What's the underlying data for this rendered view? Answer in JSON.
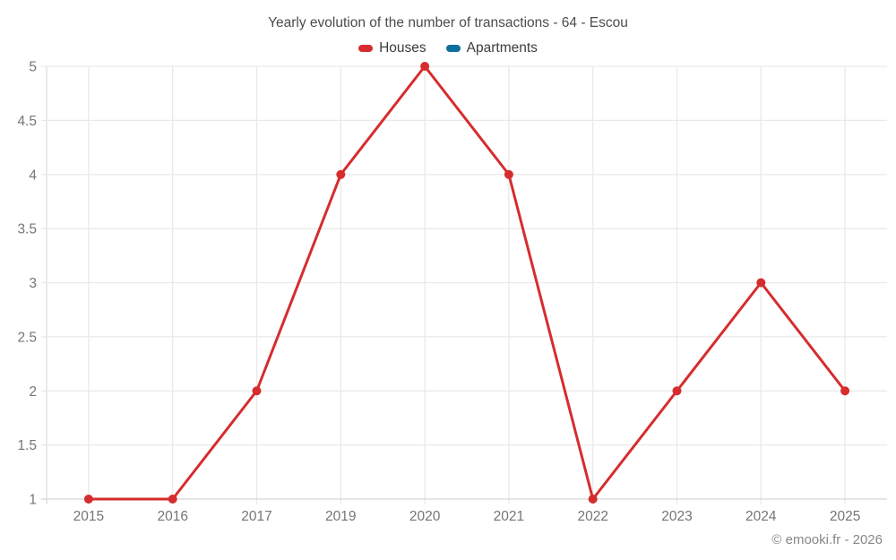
{
  "footer": {
    "copyright": "© emooki.fr - 2026"
  },
  "chart_data": {
    "type": "line",
    "title": "Yearly evolution of the number of transactions - 64 - Escou",
    "categories": [
      "2015",
      "2016",
      "2017",
      "2019",
      "2020",
      "2021",
      "2022",
      "2023",
      "2024",
      "2025"
    ],
    "series": [
      {
        "name": "Houses",
        "color": "#d62c2e",
        "values": [
          1,
          1,
          2,
          4,
          5,
          4,
          1,
          2,
          3,
          2
        ]
      },
      {
        "name": "Apartments",
        "color": "#0e6e9c",
        "values": []
      }
    ],
    "xlabel": "",
    "ylabel": "",
    "ylim": [
      1,
      5
    ],
    "yticks": [
      1,
      1.5,
      2,
      2.5,
      3,
      3.5,
      4,
      4.5,
      5
    ],
    "grid": true,
    "legend_position": "top",
    "marker": "circle",
    "colors": {
      "grid": "#e9e9e9",
      "axis": "#d4d4d4",
      "tick_label": "#757575",
      "title_text": "#4c4c4c"
    }
  }
}
